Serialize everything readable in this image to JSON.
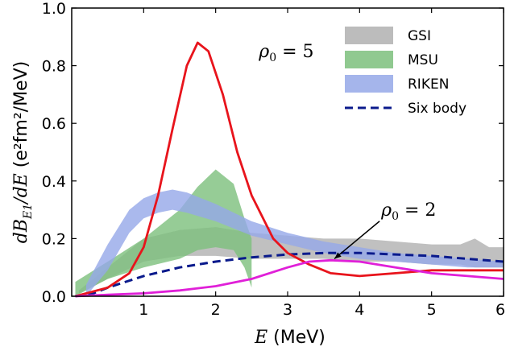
{
  "chart_data": {
    "type": "line",
    "x_axis": {
      "label_var": "E",
      "label_unit": " (MeV)",
      "range": [
        0.0,
        6.0
      ],
      "ticks": [
        1,
        2,
        3,
        4,
        5,
        6
      ],
      "tick_labels": [
        "1",
        "2",
        "3",
        "4",
        "5",
        "6"
      ]
    },
    "y_axis": {
      "label_math": "dB",
      "label_sub": "E1",
      "label_math2": "/dE",
      "label_unit": " (e²fm²/MeV)",
      "range": [
        0.0,
        1.0
      ],
      "ticks": [
        0.0,
        0.2,
        0.4,
        0.6,
        0.8,
        1.0
      ],
      "tick_labels": [
        "0.0",
        "0.2",
        "0.4",
        "0.6",
        "0.8",
        "1.0"
      ]
    },
    "bands": [
      {
        "name": "GSI",
        "color": "#b0b0b0",
        "x": [
          0.1,
          0.5,
          1.0,
          1.5,
          2.0,
          2.5,
          3.0,
          3.5,
          4.0,
          4.5,
          5.0,
          5.4,
          5.6,
          5.8,
          6.0
        ],
        "upper": [
          0.02,
          0.1,
          0.2,
          0.23,
          0.24,
          0.22,
          0.21,
          0.2,
          0.2,
          0.19,
          0.18,
          0.18,
          0.2,
          0.17,
          0.17
        ],
        "lower": [
          0.01,
          0.06,
          0.12,
          0.14,
          0.14,
          0.13,
          0.13,
          0.13,
          0.12,
          0.12,
          0.11,
          0.11,
          0.1,
          0.1,
          0.1
        ]
      },
      {
        "name": "MSU",
        "color": "#7cbf7c",
        "x": [
          0.05,
          0.5,
          1.0,
          1.5,
          1.75,
          2.0,
          2.25,
          2.4,
          2.5
        ],
        "upper": [
          0.05,
          0.12,
          0.2,
          0.3,
          0.38,
          0.44,
          0.39,
          0.27,
          0.2
        ],
        "lower": [
          0.0,
          0.06,
          0.1,
          0.13,
          0.16,
          0.17,
          0.16,
          0.1,
          0.03
        ]
      },
      {
        "name": "RIKEN",
        "color": "#95a8e8",
        "x": [
          0.2,
          0.5,
          0.8,
          1.0,
          1.2,
          1.4,
          1.6,
          2.0,
          2.5,
          3.0,
          3.5,
          4.0,
          4.5,
          5.0,
          5.5,
          6.0
        ],
        "upper": [
          0.04,
          0.18,
          0.3,
          0.34,
          0.36,
          0.37,
          0.36,
          0.32,
          0.26,
          0.22,
          0.19,
          0.17,
          0.15,
          0.14,
          0.13,
          0.12
        ],
        "lower": [
          0.0,
          0.09,
          0.22,
          0.27,
          0.29,
          0.3,
          0.29,
          0.26,
          0.21,
          0.18,
          0.15,
          0.13,
          0.12,
          0.11,
          0.1,
          0.1
        ]
      }
    ],
    "series": [
      {
        "name": "Six body",
        "color": "#0a1a8c",
        "style": "dashed",
        "x": [
          0.05,
          0.3,
          0.5,
          1.0,
          1.5,
          2.0,
          2.5,
          3.0,
          3.5,
          4.0,
          4.5,
          5.0,
          5.5,
          6.0
        ],
        "y": [
          0.0,
          0.01,
          0.03,
          0.07,
          0.1,
          0.12,
          0.135,
          0.145,
          0.15,
          0.15,
          0.145,
          0.14,
          0.13,
          0.12
        ]
      },
      {
        "name": "rho0 = 5",
        "color": "#e8141c",
        "style": "solid",
        "x": [
          0.05,
          0.5,
          0.8,
          1.0,
          1.2,
          1.4,
          1.6,
          1.75,
          1.9,
          2.1,
          2.3,
          2.5,
          2.8,
          3.0,
          3.3,
          3.6,
          4.0,
          4.5,
          5.0,
          5.5,
          6.0
        ],
        "y": [
          0.0,
          0.03,
          0.08,
          0.17,
          0.35,
          0.58,
          0.8,
          0.88,
          0.85,
          0.7,
          0.5,
          0.35,
          0.2,
          0.15,
          0.11,
          0.08,
          0.07,
          0.08,
          0.09,
          0.09,
          0.09
        ]
      },
      {
        "name": "rho0 = 2",
        "color": "#e020d8",
        "style": "solid",
        "x": [
          0.05,
          0.5,
          1.0,
          1.5,
          2.0,
          2.5,
          3.0,
          3.3,
          3.6,
          4.0,
          4.5,
          5.0,
          5.5,
          6.0
        ],
        "y": [
          0.0,
          0.005,
          0.01,
          0.02,
          0.035,
          0.06,
          0.1,
          0.12,
          0.125,
          0.12,
          0.1,
          0.08,
          0.07,
          0.06
        ]
      }
    ],
    "legend": {
      "position": "top-right",
      "items": [
        {
          "label": "GSI",
          "type": "band",
          "color": "#b0b0b0"
        },
        {
          "label": "MSU",
          "type": "band",
          "color": "#7cbf7c"
        },
        {
          "label": "RIKEN",
          "type": "band",
          "color": "#95a8e8"
        },
        {
          "label": "Six body",
          "type": "dashed",
          "color": "#0a1a8c"
        }
      ]
    },
    "annotations": [
      {
        "var": "ρ",
        "sub": "0",
        "rest": " = 5",
        "x": 2.6,
        "y": 0.83
      },
      {
        "var": "ρ",
        "sub": "0",
        "rest": " = 2",
        "x": 4.3,
        "y": 0.28,
        "arrow_to": [
          3.65,
          0.13
        ]
      }
    ]
  }
}
